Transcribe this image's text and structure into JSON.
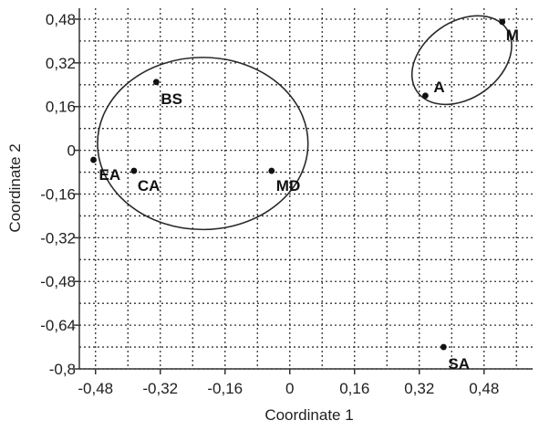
{
  "chart_data": {
    "type": "scatter",
    "xlabel": "Coordinate 1",
    "ylabel": "Coordinate 2",
    "xlim": [
      -0.52,
      0.6
    ],
    "ylim": [
      -0.8,
      0.52
    ],
    "xticks": [
      -0.48,
      -0.32,
      -0.16,
      0,
      0.16,
      0.32,
      0.48
    ],
    "yticks": [
      0.48,
      0.32,
      0.16,
      0,
      -0.16,
      -0.32,
      -0.48,
      -0.64,
      -0.8
    ],
    "xtick_labels": [
      "-0,48",
      "-0,32",
      "-0,16",
      "0",
      "0,16",
      "0,32",
      "0,48"
    ],
    "ytick_labels": [
      "0,48",
      "0,32",
      "0,16",
      "0",
      "-0,16",
      "-0,32",
      "-0,48",
      "-0,64",
      "-0,8"
    ],
    "grid": "dotted",
    "points": [
      {
        "label": "M",
        "x": 0.525,
        "y": 0.47
      },
      {
        "label": "A",
        "x": 0.335,
        "y": 0.2
      },
      {
        "label": "BS",
        "x": -0.33,
        "y": 0.25
      },
      {
        "label": "EA",
        "x": -0.485,
        "y": -0.035
      },
      {
        "label": "CA",
        "x": -0.385,
        "y": -0.075
      },
      {
        "label": "MD",
        "x": -0.045,
        "y": -0.075
      },
      {
        "label": "SA",
        "x": 0.38,
        "y": -0.72
      }
    ],
    "ellipses": [
      {
        "cx": 0.425,
        "cy": 0.33,
        "rx": 0.135,
        "ry": 0.14,
        "rotate_deg": -35
      },
      {
        "cx": -0.215,
        "cy": 0.025,
        "rx": 0.26,
        "ry": 0.315,
        "rotate_deg": 0
      }
    ],
    "colors": {
      "axis": "#333333",
      "grid": "#333333",
      "point": "#111111",
      "text": "#1f1f1f"
    }
  }
}
